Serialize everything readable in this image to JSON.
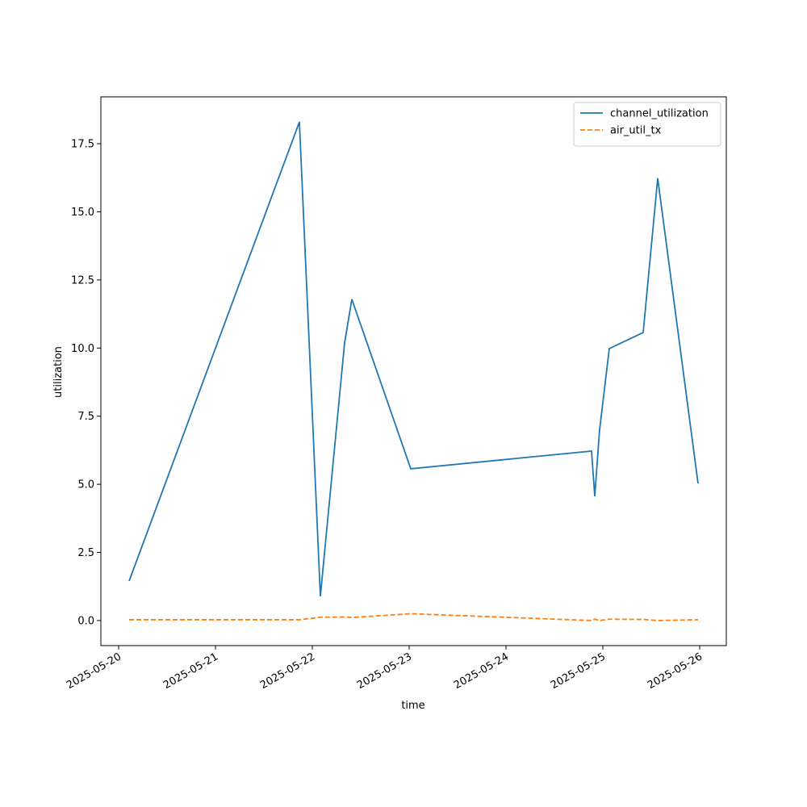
{
  "chart_data": {
    "type": "line",
    "xlabel": "time",
    "ylabel": "utilization",
    "x": [
      "2025-05-20T02:36",
      "2025-05-21T20:48",
      "2025-05-22T02:00",
      "2025-05-22T08:00",
      "2025-05-22T09:48",
      "2025-05-23T00:24",
      "2025-05-24T21:12",
      "2025-05-24T22:00",
      "2025-05-24T23:12",
      "2025-05-25T01:36",
      "2025-05-25T10:00",
      "2025-05-25T13:36",
      "2025-05-25T23:36"
    ],
    "series": [
      {
        "name": "channel_utilization",
        "color": "#1f77b4",
        "dash": "solid",
        "values": [
          1.45,
          18.3,
          0.89,
          10.19,
          11.79,
          5.57,
          6.22,
          4.56,
          7.0,
          9.98,
          10.57,
          16.23,
          5.03
        ]
      },
      {
        "name": "air_util_tx",
        "color": "#ff7f0e",
        "dash": "dashed",
        "values": [
          0.03,
          0.03,
          0.12,
          0.13,
          0.11,
          0.25,
          0.0,
          0.05,
          0.0,
          0.05,
          0.04,
          0.0,
          0.03
        ]
      }
    ],
    "xlim": [
      "2025-05-19T19:36",
      "2025-05-26T06:36"
    ],
    "xticks": [
      "2025-05-20",
      "2025-05-21",
      "2025-05-22",
      "2025-05-23",
      "2025-05-24",
      "2025-05-25",
      "2025-05-26"
    ],
    "ylim": [
      -0.92,
      19.22
    ],
    "yticks": [
      {
        "value": 0,
        "label": "0.0"
      },
      2.5,
      {
        "value": 5,
        "label": "5.0"
      },
      7.5,
      {
        "value": 10,
        "label": "10.0"
      },
      12.5,
      {
        "value": 15,
        "label": "15.0"
      },
      17.5
    ],
    "legend": "upper right"
  }
}
